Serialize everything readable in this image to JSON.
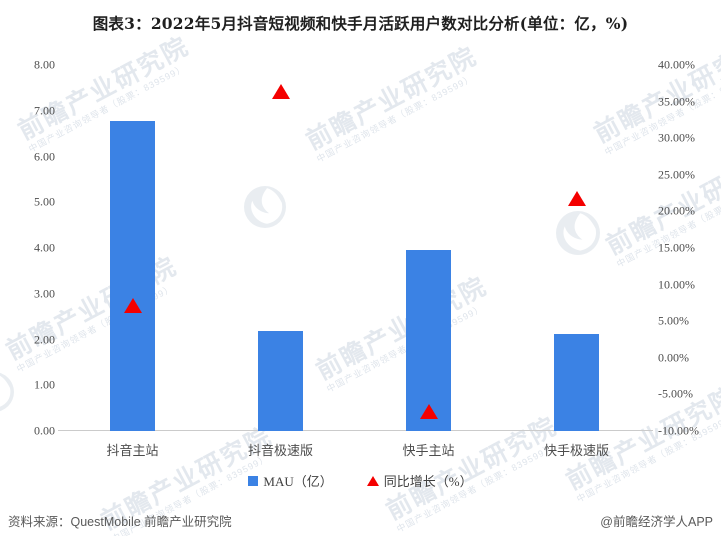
{
  "title": "图表3：2022年5月抖音短视频和快手月活跃用户数对比分析(单位：亿，%)",
  "chart_data": {
    "type": "bar",
    "categories": [
      "抖音主站",
      "抖音极速版",
      "快手主站",
      "快手极速版"
    ],
    "series": [
      {
        "name": "MAU（亿）",
        "type": "bar",
        "axis": "left",
        "values": [
          6.77,
          2.18,
          3.95,
          2.12
        ]
      },
      {
        "name": "同比增长（%）",
        "type": "scatter",
        "marker": "triangle",
        "axis": "right",
        "values": [
          7.1,
          36.4,
          -7.4,
          21.8
        ]
      }
    ],
    "left_axis": {
      "min": 0,
      "max": 8,
      "step": 1,
      "format": "fixed2"
    },
    "right_axis": {
      "min": -10,
      "max": 40,
      "step": 5,
      "format": "percent2"
    },
    "grid": false,
    "legend_position": "bottom"
  },
  "colors": {
    "bar": "#3b82e4",
    "marker": "#f40000",
    "axis_line": "#cbcbcb",
    "tick_text": "#4d4d4d",
    "title_text": "#1f1f1f"
  },
  "footer": {
    "source": "资料来源：QuestMobile 前瞻产业研究院",
    "credit": "@前瞻经济学人APP"
  },
  "watermark": {
    "main": "前瞻产业研究院",
    "sub": "中国产业咨询领导者（股票：839599）"
  }
}
